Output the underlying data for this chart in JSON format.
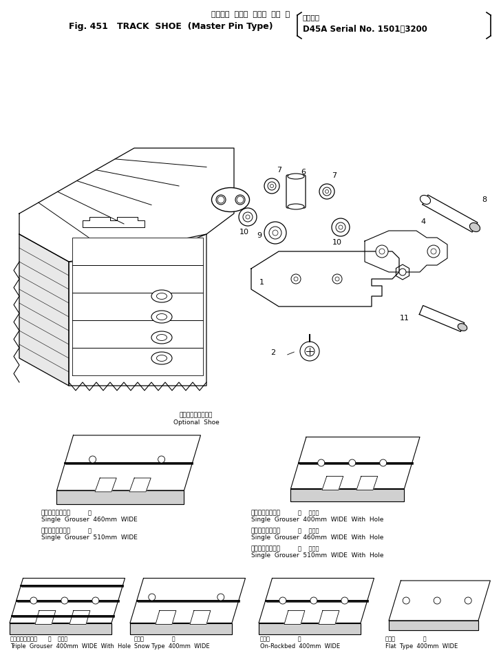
{
  "title_japanese": "トラック  シュー  マスタ  ピン  型",
  "title_english": "Fig. 451   TRACK  SHOE  (Master Pin Type)",
  "subtitle_right_jp": "適用号機",
  "subtitle_right_en": "D45A Serial No. 1501～3200",
  "optional_shoe_jp": "オプショナルシュー",
  "optional_shoe_en": "Optional  Shoe",
  "bg_color": "#ffffff",
  "text_color": "#000000",
  "figsize": [
    7.28,
    9.51
  ],
  "dpi": 100
}
